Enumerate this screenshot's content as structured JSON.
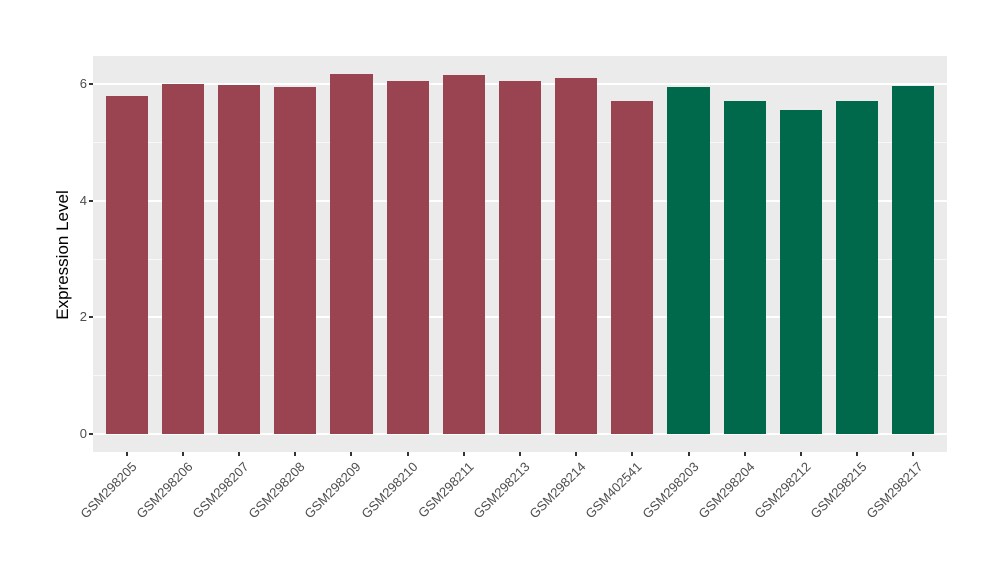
{
  "chart_data": {
    "type": "bar",
    "title": "",
    "xlabel": "",
    "ylabel": "Expression Level",
    "ylim": [
      0,
      6.5
    ],
    "yticks": [
      0,
      2,
      4,
      6
    ],
    "yticks_minor": [
      1,
      3,
      5
    ],
    "grid": true,
    "legend_position": "none",
    "categories": [
      "GSM298205",
      "GSM298206",
      "GSM298207",
      "GSM298208",
      "GSM298209",
      "GSM298210",
      "GSM298211",
      "GSM298213",
      "GSM298214",
      "GSM402541",
      "GSM298203",
      "GSM298204",
      "GSM298212",
      "GSM298215",
      "GSM298217"
    ],
    "values": [
      5.8,
      6.0,
      5.98,
      5.96,
      6.17,
      6.06,
      6.16,
      6.05,
      6.1,
      5.71,
      5.96,
      5.72,
      5.55,
      5.72,
      5.97
    ],
    "bar_groups": [
      "red",
      "red",
      "red",
      "red",
      "red",
      "red",
      "red",
      "red",
      "red",
      "red",
      "green",
      "green",
      "green",
      "green",
      "green"
    ],
    "colors": {
      "red": "#9A4452",
      "green": "#00694B",
      "panel_background": "#EBEBEB",
      "grid_major": "#FFFFFF",
      "tick_label": "#4D4D4D",
      "axis_title": "#000000"
    }
  }
}
